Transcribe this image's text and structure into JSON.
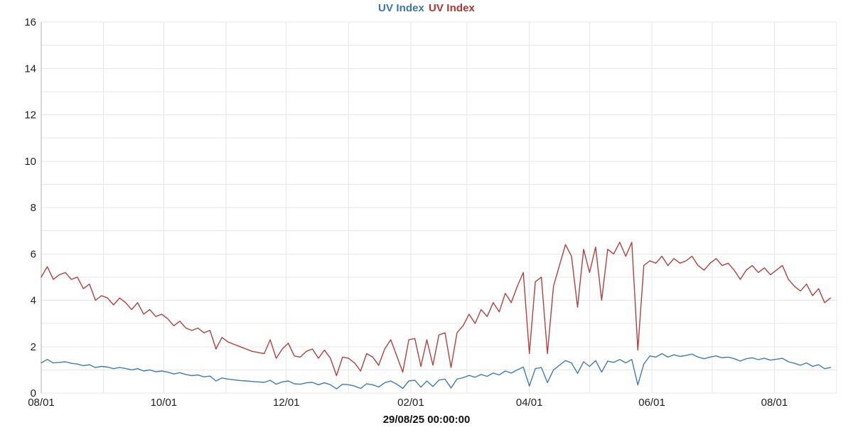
{
  "chart_data": {
    "type": "line",
    "title_legend": [
      {
        "label": "UV Index",
        "color": "#3a76b2"
      },
      {
        "label": "UV Index",
        "color": "#b03532"
      }
    ],
    "footer_label": "29/08/25 00:00:00",
    "x_axis": {
      "start_label": "08/01",
      "total_days": 396,
      "data_end_day": 393,
      "month_gridline_days": [
        0,
        31,
        61,
        92,
        122,
        153,
        184,
        212,
        243,
        273,
        304,
        334,
        365,
        396
      ],
      "ticks": [
        {
          "day": 0,
          "label": "08/01"
        },
        {
          "day": 61,
          "label": "10/01"
        },
        {
          "day": 122,
          "label": "12/01"
        },
        {
          "day": 184,
          "label": "02/01"
        },
        {
          "day": 243,
          "label": "04/01"
        },
        {
          "day": 304,
          "label": "06/01"
        },
        {
          "day": 365,
          "label": "08/01"
        }
      ]
    },
    "y_axis": {
      "min": 0,
      "max": 16,
      "grid_step": 1,
      "label_step": 2,
      "tick_labels": [
        "0",
        "2",
        "4",
        "6",
        "8",
        "10",
        "12",
        "14",
        "16"
      ]
    },
    "sample_interval_days": 3,
    "series": [
      {
        "name": "UV Index",
        "color": "#3d7cba",
        "values": [
          1.3,
          1.45,
          1.3,
          1.32,
          1.35,
          1.28,
          1.25,
          1.18,
          1.22,
          1.1,
          1.15,
          1.12,
          1.05,
          1.1,
          1.06,
          1.0,
          1.05,
          0.95,
          1.0,
          0.92,
          0.95,
          0.9,
          0.82,
          0.88,
          0.8,
          0.75,
          0.78,
          0.7,
          0.73,
          0.52,
          0.65,
          0.6,
          0.57,
          0.54,
          0.52,
          0.5,
          0.48,
          0.46,
          0.55,
          0.38,
          0.48,
          0.52,
          0.4,
          0.38,
          0.44,
          0.46,
          0.36,
          0.44,
          0.36,
          0.18,
          0.38,
          0.36,
          0.3,
          0.2,
          0.4,
          0.36,
          0.26,
          0.44,
          0.52,
          0.38,
          0.2,
          0.52,
          0.55,
          0.25,
          0.52,
          0.28,
          0.56,
          0.6,
          0.22,
          0.6,
          0.66,
          0.76,
          0.68,
          0.8,
          0.72,
          0.86,
          0.78,
          0.95,
          0.86,
          1.0,
          1.12,
          0.3,
          1.05,
          1.1,
          0.45,
          1.0,
          1.2,
          1.4,
          1.3,
          0.85,
          1.35,
          1.15,
          1.4,
          0.9,
          1.38,
          1.32,
          1.45,
          1.3,
          1.45,
          0.35,
          1.25,
          1.6,
          1.55,
          1.7,
          1.55,
          1.65,
          1.58,
          1.62,
          1.68,
          1.55,
          1.48,
          1.55,
          1.6,
          1.52,
          1.55,
          1.48,
          1.38,
          1.48,
          1.52,
          1.44,
          1.5,
          1.42,
          1.46,
          1.5,
          1.35,
          1.28,
          1.2,
          1.3,
          1.15,
          1.22,
          1.05,
          1.1
        ]
      },
      {
        "name": "UV Index",
        "color": "#b4403e",
        "values": [
          5.0,
          5.45,
          4.9,
          5.1,
          5.2,
          4.9,
          5.0,
          4.5,
          4.7,
          4.0,
          4.2,
          4.1,
          3.8,
          4.1,
          3.9,
          3.6,
          3.9,
          3.4,
          3.6,
          3.3,
          3.4,
          3.2,
          2.9,
          3.1,
          2.8,
          2.7,
          2.8,
          2.6,
          2.7,
          1.9,
          2.4,
          2.2,
          2.1,
          2.0,
          1.9,
          1.8,
          1.75,
          1.7,
          2.3,
          1.5,
          1.9,
          2.15,
          1.6,
          1.55,
          1.8,
          1.9,
          1.5,
          1.85,
          1.5,
          0.75,
          1.55,
          1.5,
          1.3,
          0.95,
          1.7,
          1.55,
          1.2,
          1.9,
          2.3,
          1.6,
          0.9,
          2.3,
          2.35,
          1.15,
          2.3,
          1.2,
          2.5,
          2.6,
          1.1,
          2.6,
          2.9,
          3.4,
          3.0,
          3.6,
          3.3,
          3.9,
          3.5,
          4.3,
          3.9,
          4.6,
          5.2,
          1.7,
          4.8,
          5.0,
          1.7,
          4.6,
          5.5,
          6.4,
          5.9,
          3.7,
          6.2,
          5.2,
          6.3,
          4.0,
          6.2,
          6.0,
          6.5,
          5.9,
          6.5,
          1.85,
          5.5,
          5.7,
          5.6,
          5.9,
          5.5,
          5.8,
          5.6,
          5.7,
          5.9,
          5.5,
          5.3,
          5.6,
          5.8,
          5.5,
          5.6,
          5.3,
          4.9,
          5.3,
          5.5,
          5.2,
          5.4,
          5.1,
          5.3,
          5.5,
          4.9,
          4.6,
          4.4,
          4.7,
          4.2,
          4.5,
          3.9,
          4.1
        ]
      }
    ],
    "grid_color": "#e7e7e7",
    "axis_line_color": "#b3b3b3",
    "tick_label_color": "#1f1f1f",
    "background_color": "#ffffff"
  }
}
